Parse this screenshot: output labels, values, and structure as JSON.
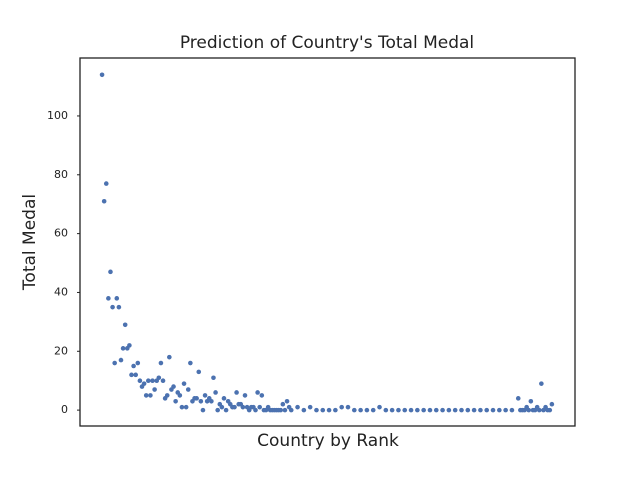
{
  "chart_data": {
    "type": "scatter",
    "title": "Prediction of Country's Total Medal",
    "x_label": "Country by Rank",
    "y_label": "Total Medal",
    "color": "#4c72b0",
    "xlim": [
      -10.5,
      225
    ],
    "ylim": [
      -5.4,
      119.7
    ],
    "yticks": [
      0,
      20,
      40,
      60,
      80,
      100
    ],
    "x": [
      0,
      1,
      2,
      3,
      4,
      5,
      6,
      7,
      8,
      9,
      10,
      11,
      12,
      13,
      14,
      15,
      16,
      17,
      18,
      19,
      20,
      21,
      22,
      23,
      24,
      25,
      26,
      27,
      28,
      29,
      30,
      31,
      32,
      33,
      34,
      35,
      36,
      37,
      38,
      39,
      40,
      41,
      42,
      43,
      44,
      45,
      46,
      47,
      48,
      49,
      50,
      51,
      52,
      53,
      54,
      55,
      56,
      57,
      58,
      59,
      60,
      61,
      62,
      63,
      64,
      65,
      66,
      67,
      68,
      69,
      70,
      71,
      72,
      73,
      74,
      75,
      76,
      77,
      78,
      79,
      80,
      81,
      82,
      83,
      84,
      85,
      86,
      87,
      88,
      89,
      90,
      93,
      96,
      99,
      102,
      105,
      108,
      111,
      114,
      117,
      120,
      123,
      126,
      129,
      132,
      135,
      138,
      141,
      144,
      147,
      150,
      153,
      156,
      159,
      162,
      165,
      168,
      171,
      174,
      177,
      180,
      183,
      186,
      189,
      192,
      195,
      198,
      199,
      200,
      201,
      202,
      203,
      204,
      205,
      206,
      207,
      208,
      209,
      210,
      211,
      212,
      213,
      214
    ],
    "values": [
      114,
      71,
      77,
      38,
      47,
      35,
      16,
      38,
      35,
      17,
      21,
      29,
      21,
      22,
      12,
      15,
      12,
      16,
      10,
      8,
      9,
      5,
      10,
      5,
      10,
      7,
      10,
      11,
      16,
      10,
      4,
      5,
      18,
      7,
      8,
      3,
      6,
      5,
      1,
      9,
      1,
      7,
      16,
      3,
      4,
      4,
      13,
      3,
      0,
      5,
      3,
      4,
      3,
      11,
      6,
      0,
      2,
      1,
      4,
      0,
      3,
      2,
      1,
      1,
      6,
      2,
      2,
      1,
      5,
      1,
      0,
      1,
      1,
      0,
      6,
      1,
      5,
      0,
      0,
      1,
      0,
      0,
      0,
      0,
      0,
      0,
      2,
      0,
      3,
      1,
      0,
      1,
      0,
      1,
      0,
      0,
      0,
      0,
      1,
      1,
      0,
      0,
      0,
      0,
      1,
      0,
      0,
      0,
      0,
      0,
      0,
      0,
      0,
      0,
      0,
      0,
      0,
      0,
      0,
      0,
      0,
      0,
      0,
      0,
      0,
      0,
      4,
      0,
      0,
      0,
      1,
      0,
      3,
      0,
      0,
      1,
      0,
      9,
      0,
      1,
      0,
      0,
      2
    ]
  }
}
